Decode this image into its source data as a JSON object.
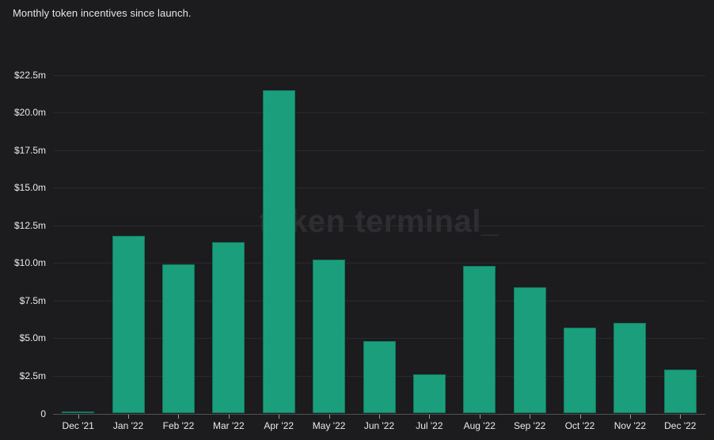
{
  "chart_data": {
    "type": "bar",
    "title": "Monthly token incentives since launch.",
    "watermark": "token terminal_",
    "categories": [
      "Dec '21",
      "Jan '22",
      "Feb '22",
      "Mar '22",
      "Apr '22",
      "May '22",
      "Jun '22",
      "Jul '22",
      "Aug '22",
      "Sep '22",
      "Oct '22",
      "Nov '22",
      "Dec '22"
    ],
    "values": [
      0.15,
      11.8,
      9.9,
      11.4,
      21.5,
      10.2,
      4.8,
      2.6,
      9.8,
      8.4,
      5.7,
      6.0,
      2.9
    ],
    "value_unit": "USD millions",
    "xlabel": "",
    "ylabel": "",
    "ylim": [
      0,
      22.5
    ],
    "grid": true,
    "legend": false,
    "y_ticks": [
      {
        "value": 0,
        "label": "0"
      },
      {
        "value": 2.5,
        "label": "$2.5m"
      },
      {
        "value": 5,
        "label": "$5.0m"
      },
      {
        "value": 7.5,
        "label": "$7.5m"
      },
      {
        "value": 10,
        "label": "$10.0m"
      },
      {
        "value": 12.5,
        "label": "$12.5m"
      },
      {
        "value": 15,
        "label": "$15.0m"
      },
      {
        "value": 17.5,
        "label": "$17.5m"
      },
      {
        "value": 20,
        "label": "$20.0m"
      },
      {
        "value": 22.5,
        "label": "$22.5m"
      }
    ],
    "colors": {
      "background": "#1c1c1e",
      "bar": "#1a9e7c",
      "bar_border": "#117a5e",
      "gridline": "#2a2a2d",
      "axis_line": "#515156",
      "tick": "#9a9a9e",
      "label_text": "#e9e9e9",
      "title_text": "#e6e6e6",
      "watermark_text": "#2e2e32"
    }
  }
}
